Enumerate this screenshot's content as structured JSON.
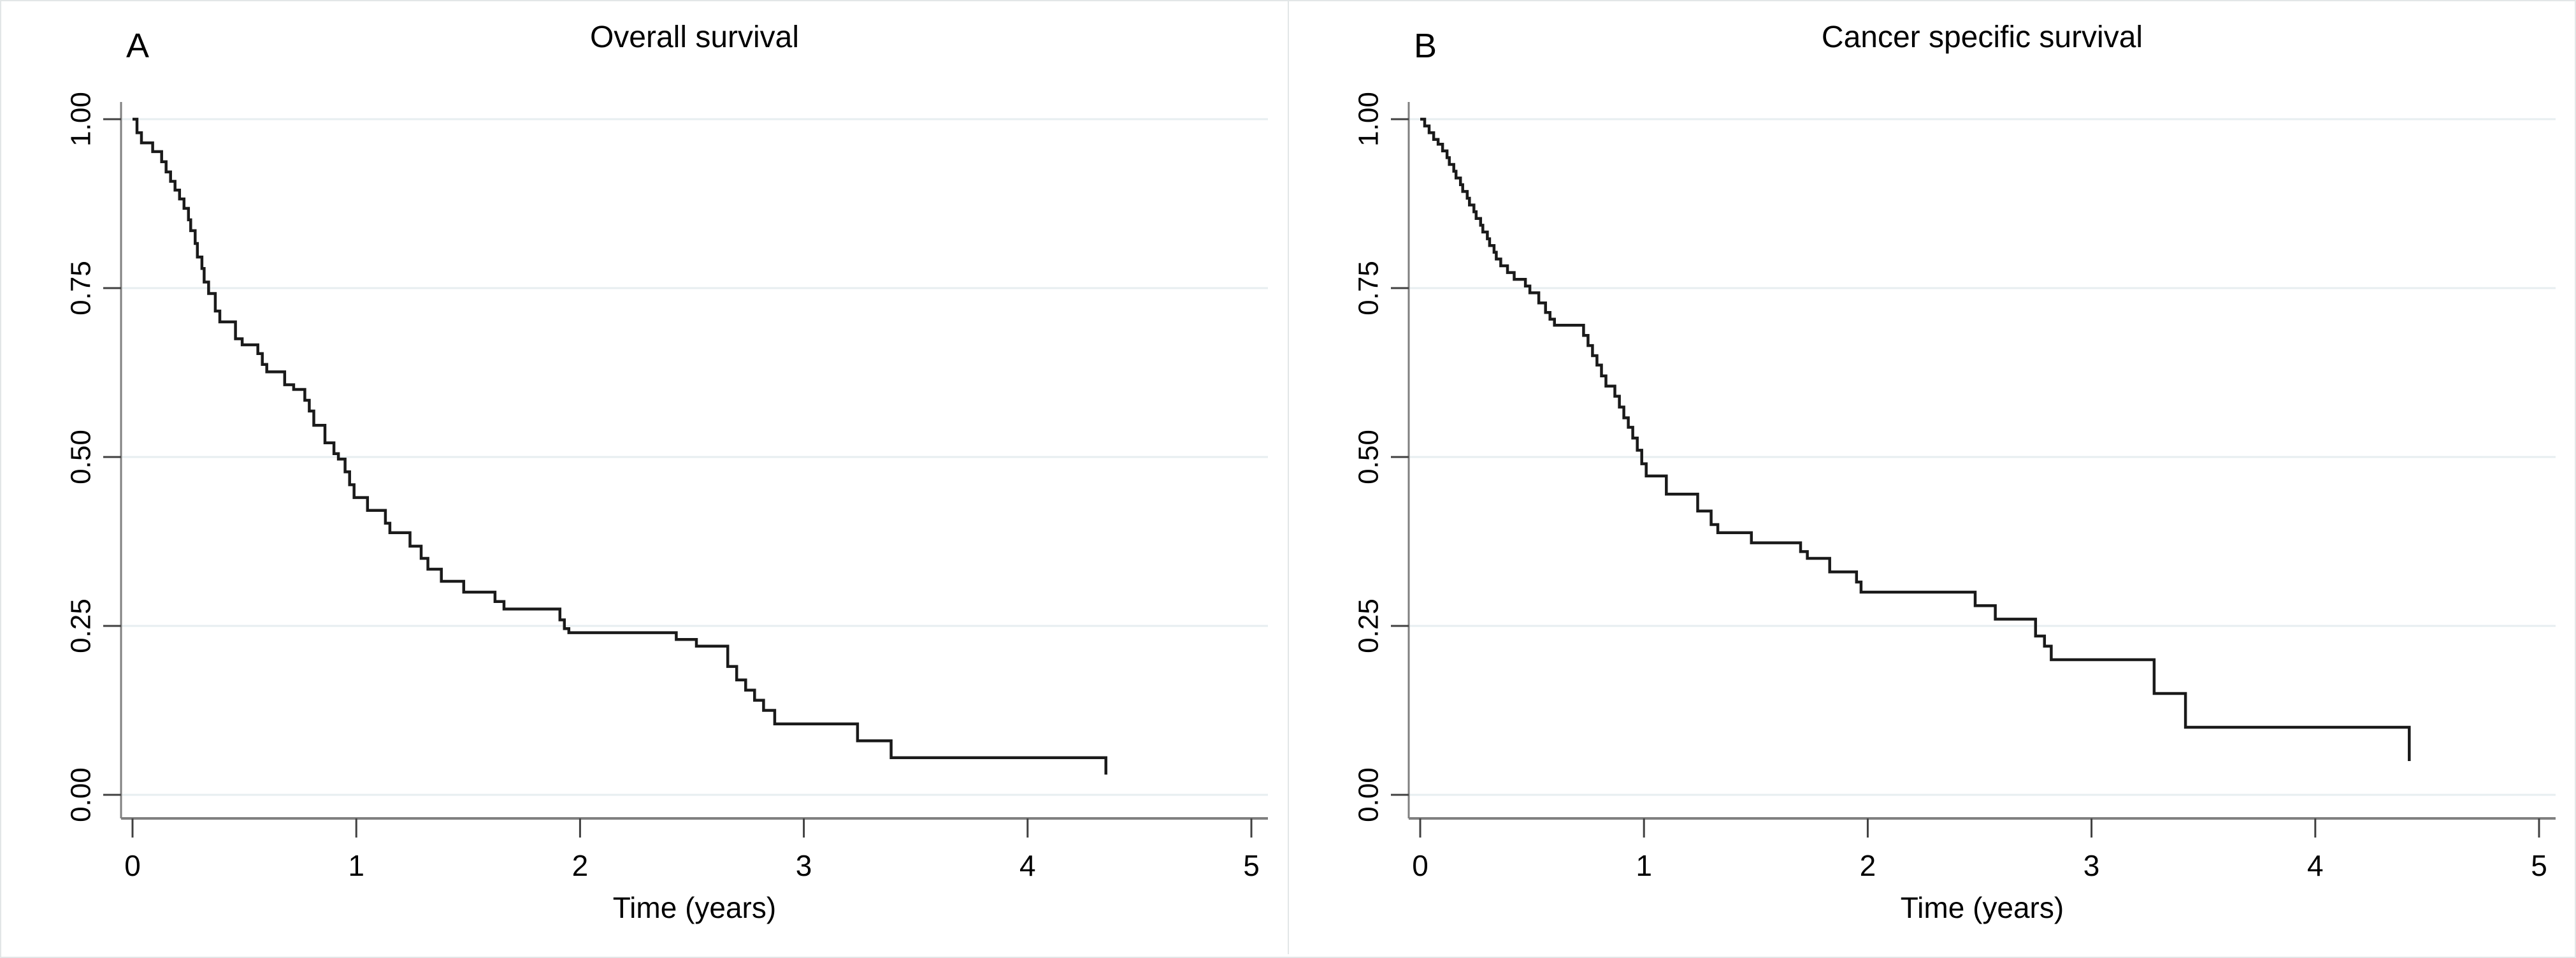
{
  "figure": {
    "background": "#ffffff",
    "border_color": "#e2e6e7"
  },
  "colors": {
    "curve": "#1a1a1a",
    "gridline": "#e7eef0",
    "axis_line": "#808080",
    "tick_mark": "#404040",
    "text": "#000000"
  },
  "chart_data": [
    {
      "type": "line",
      "subtype": "kaplan-meier-step",
      "panel_letter": "A",
      "title": "Overall survival",
      "xlabel": "Time (years)",
      "ylabel": "",
      "xlim": [
        0,
        5
      ],
      "ylim": [
        0.0,
        1.0
      ],
      "x_ticks": [
        {
          "v": 0,
          "label": "0"
        },
        {
          "v": 1,
          "label": "1"
        },
        {
          "v": 2,
          "label": "2"
        },
        {
          "v": 3,
          "label": "3"
        },
        {
          "v": 4,
          "label": "4"
        },
        {
          "v": 5,
          "label": "5"
        }
      ],
      "y_ticks": [
        {
          "v": 0.0,
          "label": "0.00"
        },
        {
          "v": 0.25,
          "label": "0.25"
        },
        {
          "v": 0.5,
          "label": "0.50"
        },
        {
          "v": 0.75,
          "label": "0.75"
        },
        {
          "v": 1.0,
          "label": "1.00"
        }
      ],
      "grid": true,
      "legend": "none",
      "steps": [
        [
          0.0,
          1.0
        ],
        [
          0.02,
          0.98
        ],
        [
          0.04,
          0.965
        ],
        [
          0.09,
          0.952
        ],
        [
          0.13,
          0.937
        ],
        [
          0.15,
          0.922
        ],
        [
          0.17,
          0.908
        ],
        [
          0.19,
          0.895
        ],
        [
          0.21,
          0.882
        ],
        [
          0.23,
          0.868
        ],
        [
          0.25,
          0.851
        ],
        [
          0.26,
          0.835
        ],
        [
          0.28,
          0.816
        ],
        [
          0.29,
          0.796
        ],
        [
          0.31,
          0.779
        ],
        [
          0.32,
          0.759
        ],
        [
          0.34,
          0.742
        ],
        [
          0.37,
          0.716
        ],
        [
          0.39,
          0.7
        ],
        [
          0.46,
          0.675
        ],
        [
          0.49,
          0.666
        ],
        [
          0.56,
          0.653
        ],
        [
          0.58,
          0.637
        ],
        [
          0.6,
          0.626
        ],
        [
          0.68,
          0.607
        ],
        [
          0.72,
          0.6
        ],
        [
          0.77,
          0.584
        ],
        [
          0.79,
          0.568
        ],
        [
          0.81,
          0.547
        ],
        [
          0.86,
          0.521
        ],
        [
          0.9,
          0.505
        ],
        [
          0.92,
          0.497
        ],
        [
          0.95,
          0.478
        ],
        [
          0.97,
          0.459
        ],
        [
          0.99,
          0.44
        ],
        [
          1.05,
          0.421
        ],
        [
          1.13,
          0.402
        ],
        [
          1.15,
          0.388
        ],
        [
          1.24,
          0.368
        ],
        [
          1.29,
          0.35
        ],
        [
          1.32,
          0.334
        ],
        [
          1.38,
          0.316
        ],
        [
          1.48,
          0.3
        ],
        [
          1.62,
          0.286
        ],
        [
          1.66,
          0.275
        ],
        [
          1.91,
          0.259
        ],
        [
          1.93,
          0.246
        ],
        [
          1.95,
          0.24
        ],
        [
          2.43,
          0.23
        ],
        [
          2.52,
          0.22
        ],
        [
          2.66,
          0.19
        ],
        [
          2.7,
          0.17
        ],
        [
          2.74,
          0.155
        ],
        [
          2.78,
          0.14
        ],
        [
          2.82,
          0.125
        ],
        [
          2.87,
          0.105
        ],
        [
          3.24,
          0.08
        ],
        [
          3.39,
          0.055
        ],
        [
          4.35,
          0.03
        ]
      ]
    },
    {
      "type": "line",
      "subtype": "kaplan-meier-step",
      "panel_letter": "B",
      "title": "Cancer specific survival",
      "xlabel": "Time (years)",
      "ylabel": "",
      "xlim": [
        0,
        5
      ],
      "ylim": [
        0.0,
        1.0
      ],
      "x_ticks": [
        {
          "v": 0,
          "label": "0"
        },
        {
          "v": 1,
          "label": "1"
        },
        {
          "v": 2,
          "label": "2"
        },
        {
          "v": 3,
          "label": "3"
        },
        {
          "v": 4,
          "label": "4"
        },
        {
          "v": 5,
          "label": "5"
        }
      ],
      "y_ticks": [
        {
          "v": 0.0,
          "label": "0.00"
        },
        {
          "v": 0.25,
          "label": "0.25"
        },
        {
          "v": 0.5,
          "label": "0.50"
        },
        {
          "v": 0.75,
          "label": "0.75"
        },
        {
          "v": 1.0,
          "label": "1.00"
        }
      ],
      "grid": true,
      "legend": "none",
      "steps": [
        [
          0.0,
          1.0
        ],
        [
          0.02,
          0.99
        ],
        [
          0.04,
          0.98
        ],
        [
          0.06,
          0.97
        ],
        [
          0.08,
          0.963
        ],
        [
          0.1,
          0.953
        ],
        [
          0.12,
          0.943
        ],
        [
          0.13,
          0.933
        ],
        [
          0.15,
          0.923
        ],
        [
          0.16,
          0.913
        ],
        [
          0.18,
          0.903
        ],
        [
          0.19,
          0.893
        ],
        [
          0.21,
          0.883
        ],
        [
          0.22,
          0.873
        ],
        [
          0.24,
          0.863
        ],
        [
          0.25,
          0.853
        ],
        [
          0.27,
          0.843
        ],
        [
          0.28,
          0.833
        ],
        [
          0.3,
          0.823
        ],
        [
          0.31,
          0.813
        ],
        [
          0.33,
          0.803
        ],
        [
          0.34,
          0.793
        ],
        [
          0.36,
          0.783
        ],
        [
          0.39,
          0.773
        ],
        [
          0.42,
          0.763
        ],
        [
          0.47,
          0.753
        ],
        [
          0.49,
          0.743
        ],
        [
          0.53,
          0.728
        ],
        [
          0.56,
          0.714
        ],
        [
          0.58,
          0.704
        ],
        [
          0.6,
          0.695
        ],
        [
          0.73,
          0.68
        ],
        [
          0.75,
          0.665
        ],
        [
          0.77,
          0.65
        ],
        [
          0.79,
          0.636
        ],
        [
          0.81,
          0.62
        ],
        [
          0.83,
          0.605
        ],
        [
          0.87,
          0.59
        ],
        [
          0.89,
          0.574
        ],
        [
          0.91,
          0.558
        ],
        [
          0.93,
          0.544
        ],
        [
          0.95,
          0.528
        ],
        [
          0.97,
          0.51
        ],
        [
          0.99,
          0.49
        ],
        [
          1.01,
          0.472
        ],
        [
          1.1,
          0.445
        ],
        [
          1.24,
          0.42
        ],
        [
          1.3,
          0.4
        ],
        [
          1.33,
          0.388
        ],
        [
          1.48,
          0.373
        ],
        [
          1.7,
          0.36
        ],
        [
          1.73,
          0.35
        ],
        [
          1.83,
          0.33
        ],
        [
          1.95,
          0.315
        ],
        [
          1.97,
          0.3
        ],
        [
          2.48,
          0.28
        ],
        [
          2.57,
          0.26
        ],
        [
          2.75,
          0.235
        ],
        [
          2.79,
          0.22
        ],
        [
          2.82,
          0.2
        ],
        [
          3.28,
          0.15
        ],
        [
          3.42,
          0.1
        ],
        [
          4.42,
          0.05
        ]
      ]
    }
  ]
}
